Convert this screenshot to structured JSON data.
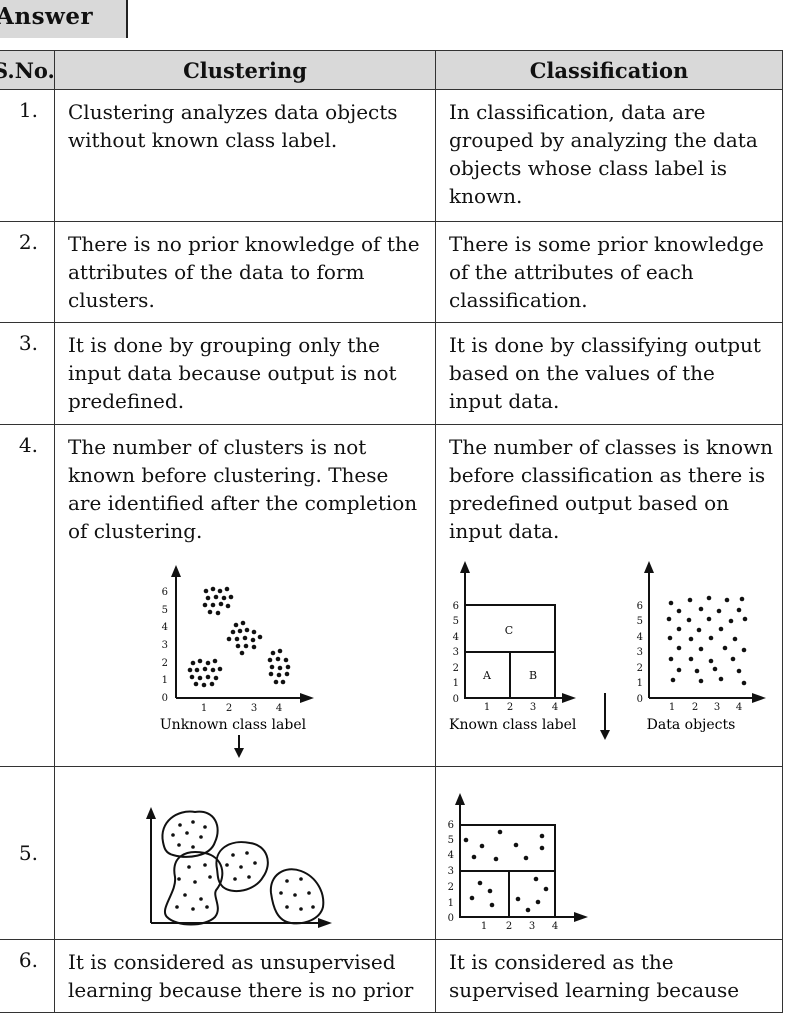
{
  "header_tab": "Answer",
  "table": {
    "headers": [
      "S.No.",
      "Clustering",
      "Classification"
    ],
    "rows": [
      {
        "no": "1.",
        "clustering": "Clustering analyzes data objects without known class label.",
        "classification": "In classification, data are grouped by analyzing the data objects whose class label is known."
      },
      {
        "no": "2.",
        "clustering": "There is no prior knowledge of the attributes of the data to form clusters.",
        "classification": "There is some prior knowledge of the attributes of each classification."
      },
      {
        "no": "3.",
        "clustering": "It is done by grouping only the input data because output is not predefined.",
        "classification": "It is done by classifying output based on the values of the input data."
      },
      {
        "no": "4.",
        "clustering": "The number of clusters is not known before clustering. These are identified after the completion of clustering.",
        "classification": "The number of classes is known before classification as there is predefined output based on input data."
      },
      {
        "no": "5.",
        "clustering": "",
        "classification": ""
      },
      {
        "no": "6.",
        "clustering": "It is considered as unsupervised learning because there is no prior",
        "classification": "It is considered as the supervised learning because"
      }
    ]
  },
  "figures": {
    "unknown_label": "Unknown class label",
    "known_label": "Known class label",
    "data_objects_label": "Data objects",
    "region_a": "A",
    "region_b": "B",
    "region_c": "C",
    "y_ticks": [
      "0",
      "1",
      "2",
      "3",
      "4",
      "5",
      "6"
    ],
    "x_ticks": [
      "1",
      "2",
      "3",
      "4"
    ]
  }
}
